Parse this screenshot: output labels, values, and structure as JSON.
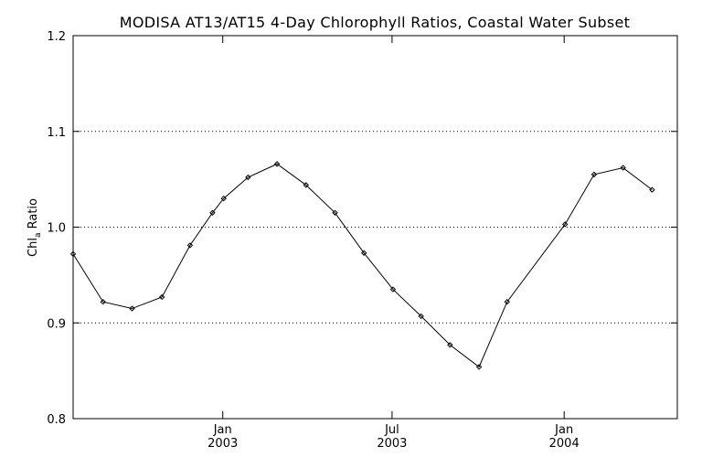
{
  "chart_data": {
    "type": "line",
    "title": "MODISA AT13/AT15 4-Day Chlorophyll Ratios, Coastal Water Subset",
    "ylabel_main": "Chl",
    "ylabel_sub": "a",
    "ylabel_rest": " Ratio",
    "xlabel": "",
    "ylim": [
      0.8,
      1.2
    ],
    "xlim": [
      "2002-07-25",
      "2004-05-01"
    ],
    "yticks": [
      "0.8",
      "0.9",
      "1.0",
      "1.1",
      "1.2"
    ],
    "grid": "horizontal dotted at 0.9, 1.0, 1.1",
    "xticks": [
      {
        "date": "2003-01-01",
        "line1": "Jan",
        "line2": "2003"
      },
      {
        "date": "2003-07-01",
        "line1": "Jul",
        "line2": "2003"
      },
      {
        "date": "2004-01-01",
        "line1": "Jan",
        "line2": "2004"
      }
    ],
    "series": [
      {
        "color": "#000000",
        "marker": "diamond",
        "points": [
          {
            "x": "2002-07-25",
            "y": 0.972
          },
          {
            "x": "2002-08-26",
            "y": 0.922
          },
          {
            "x": "2002-09-26",
            "y": 0.915
          },
          {
            "x": "2002-10-28",
            "y": 0.927
          },
          {
            "x": "2002-11-27",
            "y": 0.981
          },
          {
            "x": "2002-12-21",
            "y": 1.015
          },
          {
            "x": "2003-01-02",
            "y": 1.03
          },
          {
            "x": "2003-01-28",
            "y": 1.052
          },
          {
            "x": "2003-02-28",
            "y": 1.066
          },
          {
            "x": "2003-03-31",
            "y": 1.044
          },
          {
            "x": "2003-05-01",
            "y": 1.015
          },
          {
            "x": "2003-06-01",
            "y": 0.973
          },
          {
            "x": "2003-07-02",
            "y": 0.935
          },
          {
            "x": "2003-08-01",
            "y": 0.907
          },
          {
            "x": "2003-09-01",
            "y": 0.877
          },
          {
            "x": "2003-10-02",
            "y": 0.854
          },
          {
            "x": "2003-11-01",
            "y": 0.922
          },
          {
            "x": "2004-01-02",
            "y": 1.003
          },
          {
            "x": "2004-02-02",
            "y": 1.055
          },
          {
            "x": "2004-03-04",
            "y": 1.062
          },
          {
            "x": "2004-04-04",
            "y": 1.039
          }
        ]
      }
    ]
  }
}
